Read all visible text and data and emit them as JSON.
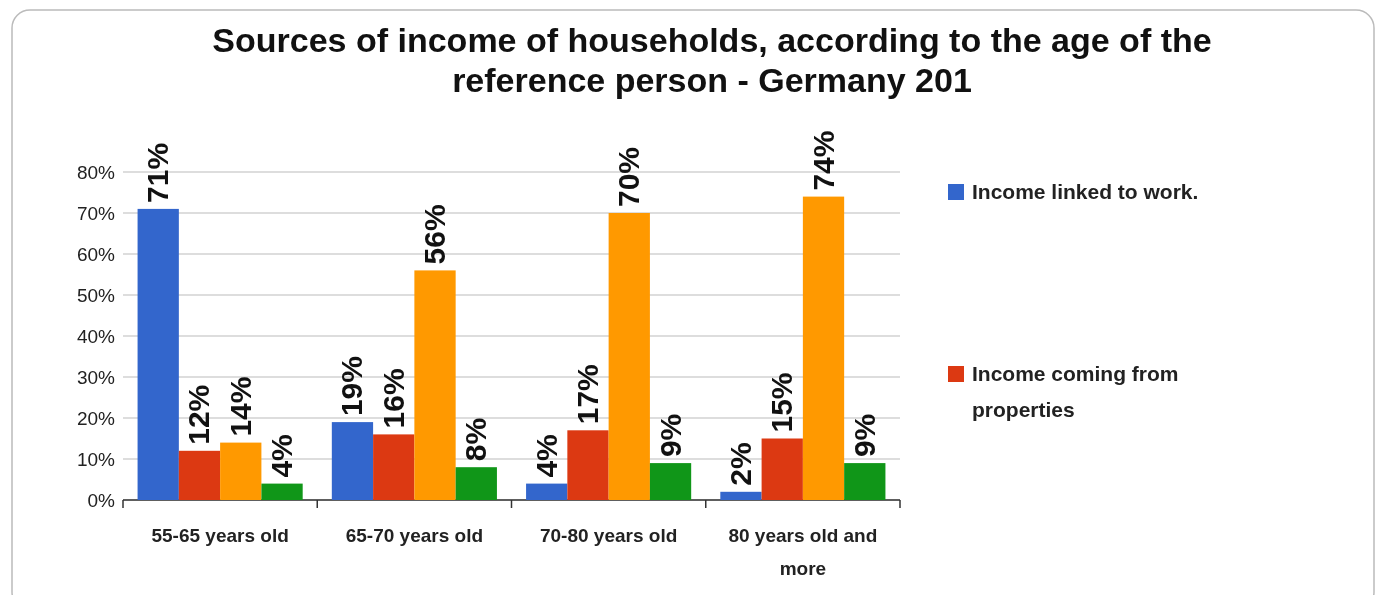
{
  "chart_data": {
    "type": "bar",
    "title": "Sources of income of households, according to the age of the reference person - Germany 201",
    "categories": [
      "55-65 years old",
      "65-70 years old",
      "70-80 years old",
      "80 years old and more"
    ],
    "series": [
      {
        "name": "Income linked to work.",
        "color": "#3366cc",
        "values": [
          71,
          19,
          4,
          2
        ],
        "value_labels": [
          "71%",
          "19%",
          "4%",
          "2%"
        ]
      },
      {
        "name": "Income coming from properties",
        "color": "#dc3912",
        "values": [
          12,
          16,
          17,
          15
        ],
        "value_labels": [
          "12%",
          "16%",
          "17%",
          "15%"
        ]
      },
      {
        "color": "#ff9900",
        "values": [
          14,
          56,
          70,
          74
        ],
        "value_labels": [
          "14%",
          "56%",
          "70%",
          "74%"
        ]
      },
      {
        "color": "#109618",
        "values": [
          4,
          8,
          9,
          9
        ],
        "value_labels": [
          "4%",
          "8%",
          "9%",
          "9%"
        ]
      }
    ],
    "ylim": [
      0,
      80
    ],
    "yticks": [
      {
        "value": 0,
        "label": "0%"
      },
      {
        "value": 10,
        "label": "10%"
      },
      {
        "value": 20,
        "label": "20%"
      },
      {
        "value": 30,
        "label": "30%"
      },
      {
        "value": 40,
        "label": "40%"
      },
      {
        "value": 50,
        "label": "50%"
      },
      {
        "value": 60,
        "label": "60%"
      },
      {
        "value": 70,
        "label": "70%"
      },
      {
        "value": 80,
        "label": "80%"
      }
    ],
    "grid": "y",
    "legend": "right"
  }
}
